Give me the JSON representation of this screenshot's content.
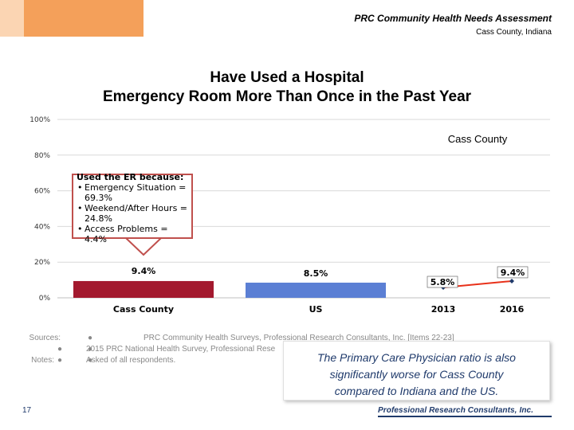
{
  "header": {
    "line1": "PRC Community Health Needs Assessment",
    "line2": "Cass County, Indiana"
  },
  "title": {
    "line1": "Have Used a Hospital",
    "line2": "Emergency Room More Than Once in the Past Year"
  },
  "callout": {
    "heading": "Used the ER because:",
    "items": [
      "Emergency Situation = 69.3%",
      "Weekend/After Hours = 24.8%",
      "Access Problems = 4.4%"
    ]
  },
  "sources": {
    "sources_label": "Sources:",
    "notes_label": "Notes:",
    "line1": "PRC Community Health Surveys, Professional Research Consultants, Inc. [Items 22-23]",
    "line2": "2015 PRC National Health Survey, Professional Rese",
    "line3": "Asked of all respondents."
  },
  "note_box": {
    "line1": "The Primary Care Physician ratio is also",
    "line2": "significantly worse for Cass County",
    "line3": "compared to Indiana and the US."
  },
  "page_number": "17",
  "footer_logo": "Professional Research Consultants, Inc.",
  "colors": {
    "cass_bar": "#a3192e",
    "us_bar": "#5b7fd4",
    "trend_line": "#e8311a",
    "grid": "#d9d9d9",
    "callout_border": "#c0504d",
    "note_text": "#1f3a6b"
  },
  "chart_data": [
    {
      "type": "bar",
      "categories": [
        "Cass County",
        "US"
      ],
      "values": [
        9.4,
        8.5
      ],
      "value_labels": [
        "9.4%",
        "8.5%"
      ],
      "ylim": [
        0,
        100
      ],
      "yticks": [
        "0%",
        "20%",
        "40%",
        "60%",
        "80%",
        "100%"
      ],
      "grid": true
    },
    {
      "type": "line",
      "title": "Cass County",
      "x": [
        "2013",
        "2016"
      ],
      "values": [
        5.8,
        9.4
      ],
      "value_labels": [
        "5.8%",
        "9.4%"
      ],
      "ylim": [
        0,
        100
      ]
    }
  ]
}
